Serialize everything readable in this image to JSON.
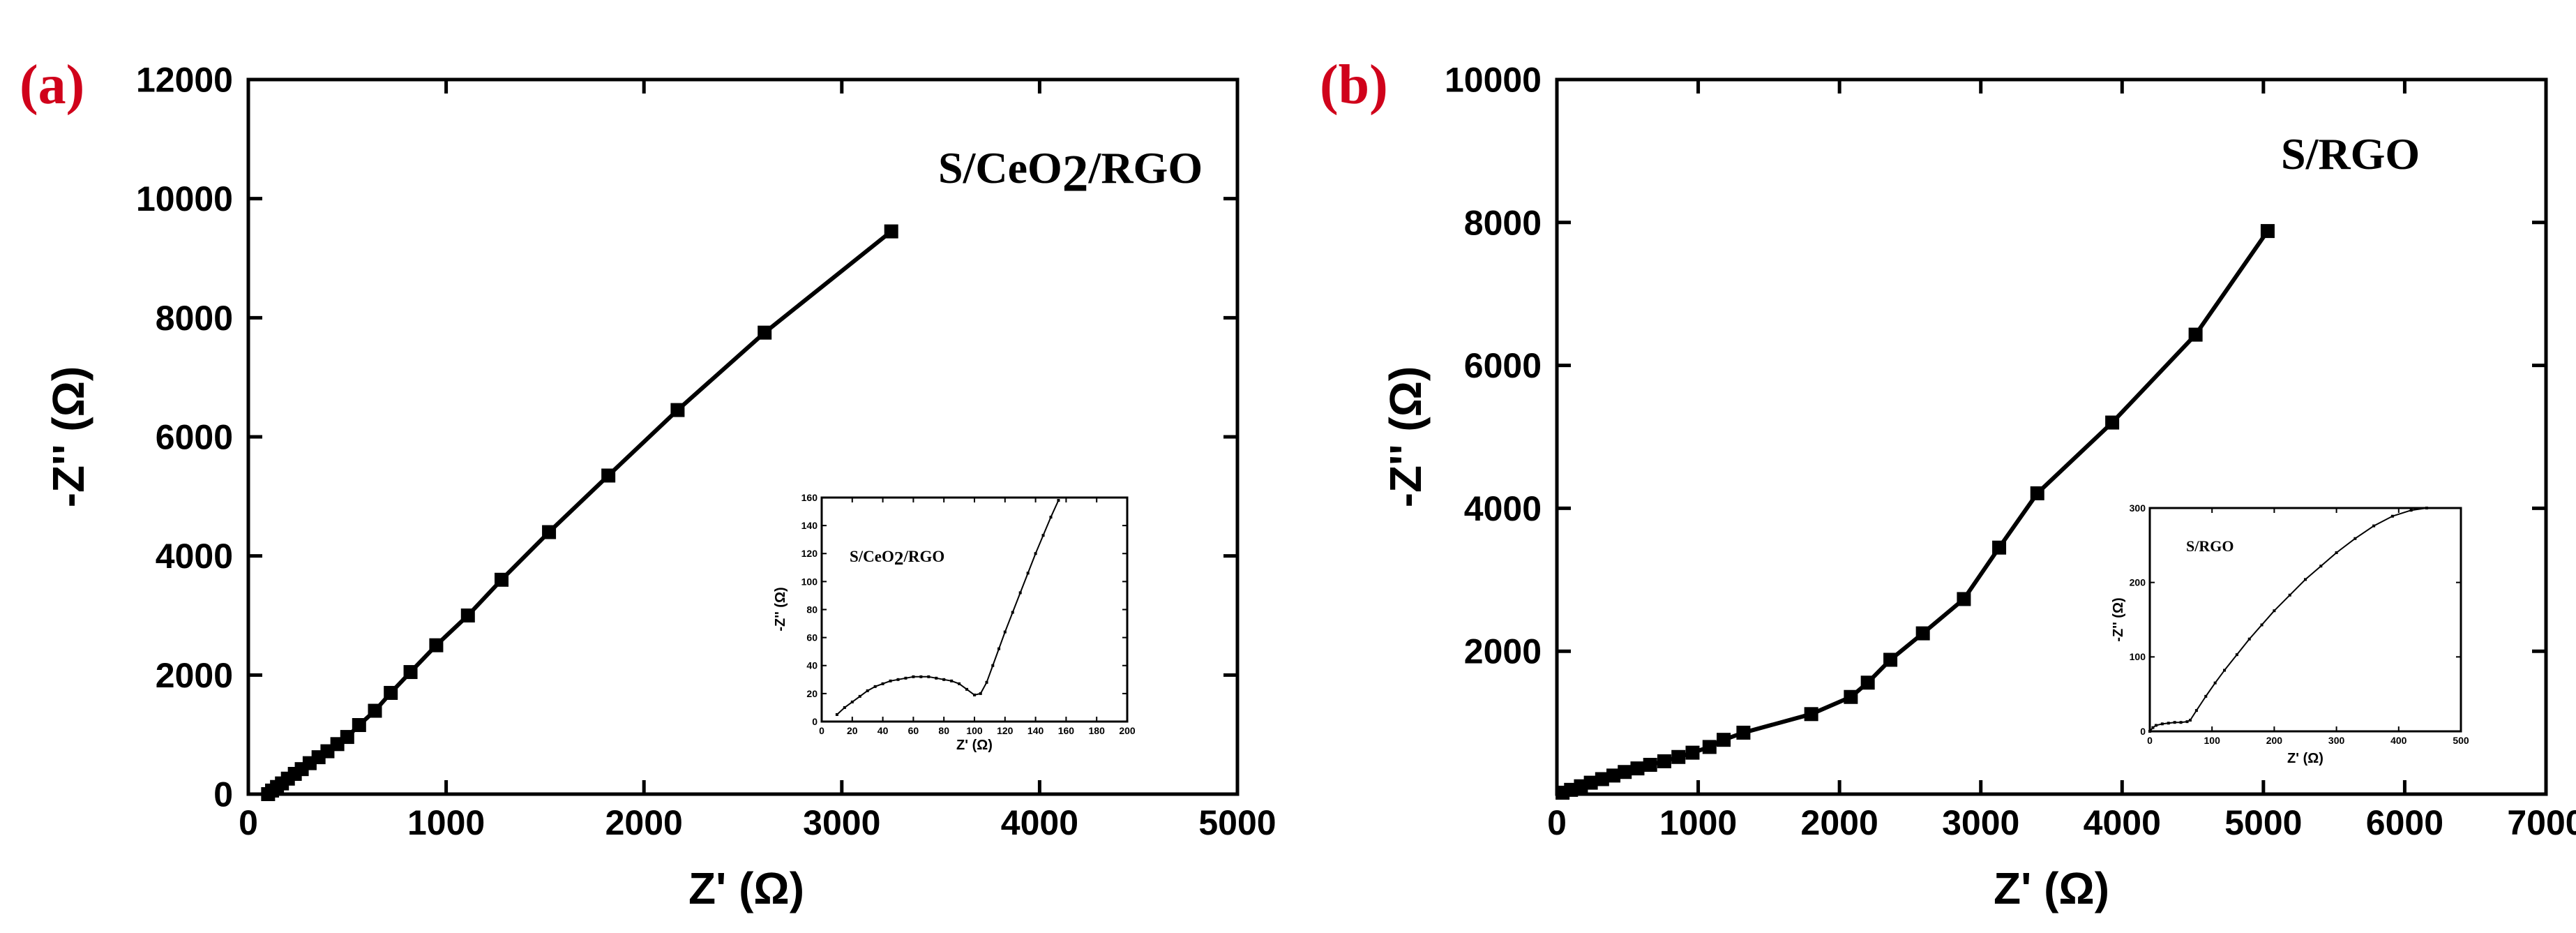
{
  "colors": {
    "panel_label": "#d0021b",
    "ink": "#000000",
    "background": "#ffffff"
  },
  "chart_data": [
    {
      "id": "a",
      "type": "line",
      "panel_label": "(a)",
      "title": "",
      "legend_label": "S/CeO2/RGO",
      "legend_parts": [
        "S/CeO",
        "2",
        "/RGO"
      ],
      "xlabel": "Z' (Ω)",
      "ylabel": "-Z'' (Ω)",
      "xlim": [
        0,
        5000
      ],
      "ylim": [
        0,
        12000
      ],
      "xticks": [
        0,
        1000,
        2000,
        3000,
        4000,
        5000
      ],
      "yticks": [
        0,
        2000,
        4000,
        6000,
        8000,
        10000,
        12000
      ],
      "grid": false,
      "x": [
        100,
        120,
        145,
        170,
        200,
        235,
        270,
        310,
        355,
        400,
        450,
        500,
        560,
        640,
        720,
        820,
        950,
        1110,
        1280,
        1520,
        1820,
        2170,
        2610,
        3250
      ],
      "y": [
        0,
        60,
        120,
        180,
        260,
        340,
        420,
        520,
        620,
        720,
        840,
        960,
        1160,
        1400,
        1700,
        2050,
        2500,
        3000,
        3600,
        4400,
        5350,
        6450,
        7750,
        9450
      ],
      "inset": {
        "type": "line",
        "label": "S/CeO2/RGO",
        "label_parts": [
          "S/CeO",
          "2",
          "/RGO"
        ],
        "xlabel": "Z' (Ω)",
        "ylabel": "-Z'' (Ω)",
        "xlim": [
          0,
          200
        ],
        "ylim": [
          0,
          160
        ],
        "xticks": [
          0,
          20,
          40,
          60,
          80,
          100,
          120,
          140,
          160,
          180,
          200
        ],
        "yticks": [
          0,
          20,
          40,
          60,
          80,
          100,
          120,
          140,
          160
        ],
        "x": [
          10,
          15,
          20,
          25,
          30,
          35,
          40,
          45,
          50,
          55,
          60,
          65,
          70,
          75,
          80,
          85,
          90,
          95,
          100,
          104,
          108,
          112,
          116,
          120,
          125,
          130,
          135,
          140,
          145,
          150,
          155
        ],
        "y": [
          5,
          10,
          14,
          18,
          22,
          25,
          27,
          29,
          30,
          31,
          32,
          32,
          32,
          31,
          30,
          29,
          27,
          23,
          19,
          20,
          28,
          40,
          52,
          64,
          78,
          92,
          106,
          120,
          133,
          146,
          158
        ]
      }
    },
    {
      "id": "b",
      "type": "line",
      "panel_label": "(b)",
      "title": "",
      "legend_label": "S/RGO",
      "xlabel": "Z' (Ω)",
      "ylabel": "-Z'' (Ω)",
      "xlim": [
        0,
        7000
      ],
      "ylim": [
        0,
        10000
      ],
      "xticks": [
        0,
        1000,
        2000,
        3000,
        4000,
        5000,
        6000,
        7000
      ],
      "yticks": [
        2000,
        4000,
        6000,
        8000,
        10000
      ],
      "grid": false,
      "x": [
        40,
        100,
        170,
        240,
        320,
        400,
        480,
        570,
        660,
        760,
        860,
        960,
        1080,
        1180,
        1320,
        1800,
        2080,
        2200,
        2360,
        2590,
        2880,
        3130,
        3400,
        3930,
        4520,
        5030
      ],
      "y": [
        20,
        60,
        110,
        160,
        210,
        260,
        310,
        360,
        410,
        460,
        520,
        580,
        660,
        760,
        860,
        1120,
        1360,
        1560,
        1880,
        2250,
        2730,
        3450,
        4210,
        5200,
        6430,
        7880
      ],
      "inset": {
        "type": "line",
        "label": "S/RGO",
        "xlabel": "Z' (Ω)",
        "ylabel": "-Z'' (Ω)",
        "xlim": [
          0,
          500
        ],
        "ylim": [
          0,
          300
        ],
        "xticks": [
          0,
          100,
          200,
          300,
          400,
          500
        ],
        "yticks": [
          0,
          100,
          200,
          300
        ],
        "x": [
          0,
          5,
          10,
          20,
          30,
          40,
          50,
          60,
          65,
          75,
          90,
          105,
          120,
          140,
          160,
          180,
          200,
          225,
          250,
          275,
          300,
          330,
          360,
          390,
          420,
          445
        ],
        "y": [
          0,
          5,
          8,
          10,
          11,
          12,
          12,
          13,
          15,
          28,
          47,
          65,
          82,
          103,
          124,
          143,
          162,
          183,
          204,
          222,
          240,
          259,
          276,
          289,
          297,
          300
        ]
      }
    }
  ]
}
